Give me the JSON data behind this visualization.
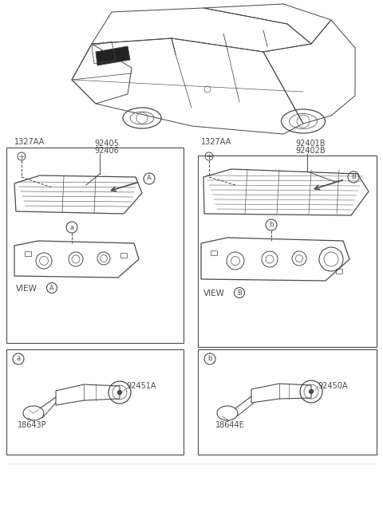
{
  "bg_color": "#ffffff",
  "line_color": "#4a4a4a",
  "labels": {
    "part_1327AA_left": "1327AA",
    "part_92405": "92405",
    "part_92406": "92406",
    "part_1327AA_right": "1327AA",
    "part_92401B": "92401B",
    "part_92402B": "92402B",
    "view_A": "VIEW",
    "view_B": "VIEW",
    "part_92451A": "92451A",
    "part_18643P": "18643P",
    "part_92450A": "92450A",
    "part_18644E": "18644E"
  },
  "figsize": [
    4.8,
    6.52
  ],
  "dpi": 100,
  "car_color": "#888888",
  "note_color": "#555555"
}
